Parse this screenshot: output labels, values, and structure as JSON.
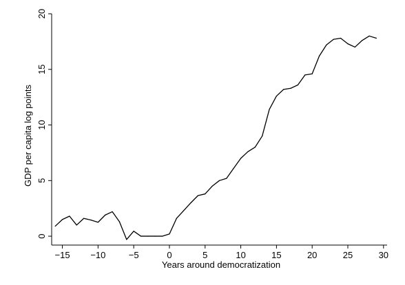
{
  "chart_data": {
    "type": "line",
    "title": "",
    "xlabel": "Years around democratization",
    "ylabel": "GDP per capita log points",
    "xlim": [
      -16.5,
      30.5
    ],
    "ylim": [
      -0.8,
      20.0
    ],
    "xticks": [
      -15,
      -10,
      -5,
      0,
      5,
      10,
      15,
      20,
      25,
      30
    ],
    "yticks": [
      0,
      5,
      10,
      15,
      20
    ],
    "grid": false,
    "legend": "none",
    "series": [
      {
        "color": "#000000",
        "x": [
          -16,
          -15,
          -14,
          -13,
          -12,
          -11,
          -10,
          -9,
          -8,
          -7,
          -6,
          -5,
          -4,
          -3,
          -2,
          -1,
          0,
          1,
          2,
          3,
          4,
          5,
          6,
          7,
          8,
          9,
          10,
          11,
          12,
          13,
          14,
          15,
          16,
          17,
          18,
          19,
          20,
          21,
          22,
          23,
          24,
          25,
          26,
          27,
          28,
          29
        ],
        "y": [
          0.9,
          1.5,
          1.8,
          1.0,
          1.6,
          1.45,
          1.25,
          1.9,
          2.2,
          1.3,
          -0.3,
          0.45,
          0.0,
          0.0,
          0.0,
          0.0,
          0.2,
          1.6,
          2.3,
          3.0,
          3.65,
          3.8,
          4.5,
          5.0,
          5.2,
          6.1,
          7.0,
          7.6,
          8.0,
          9.0,
          11.4,
          12.6,
          13.2,
          13.3,
          13.6,
          14.5,
          14.6,
          16.2,
          17.2,
          17.7,
          17.8,
          17.3,
          17.0,
          17.6,
          18.0,
          17.8
        ]
      }
    ]
  }
}
